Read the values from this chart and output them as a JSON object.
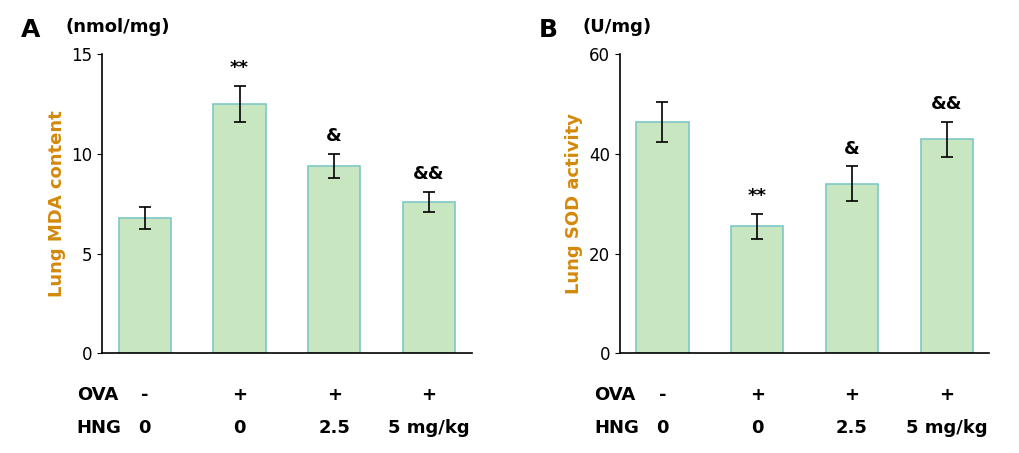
{
  "panel_A": {
    "title": "A",
    "unit_label": "(nmol/mg)",
    "ylabel": "Lung MDA content",
    "values": [
      6.8,
      12.5,
      9.4,
      7.6
    ],
    "errors": [
      0.55,
      0.9,
      0.6,
      0.5
    ],
    "ylim": [
      0,
      15
    ],
    "yticks": [
      0,
      5,
      10,
      15
    ],
    "annotations": [
      "",
      "**",
      "&",
      "&&"
    ],
    "ova_labels": [
      "-",
      "+",
      "+",
      "+"
    ],
    "hng_labels": [
      "0",
      "0",
      "2.5",
      "5 mg/kg"
    ]
  },
  "panel_B": {
    "title": "B",
    "unit_label": "(U/mg)",
    "ylabel": "Lung SOD activity",
    "values": [
      46.5,
      25.5,
      34.0,
      43.0
    ],
    "errors": [
      4.0,
      2.5,
      3.5,
      3.5
    ],
    "ylim": [
      0,
      60
    ],
    "yticks": [
      0,
      20,
      40,
      60
    ],
    "annotations": [
      "",
      "**",
      "&",
      "&&"
    ],
    "ova_labels": [
      "-",
      "+",
      "+",
      "+"
    ],
    "hng_labels": [
      "0",
      "0",
      "2.5",
      "5 mg/kg"
    ]
  },
  "bar_color": "#c8e6c0",
  "bar_edgecolor": "#7ec8c8",
  "bar_width": 0.55,
  "background_color": "#ffffff",
  "ylabel_color": "#d4890a",
  "label_fontsize": 13,
  "tick_fontsize": 12,
  "annot_fontsize": 13,
  "title_fontsize": 18,
  "unit_fontsize": 13
}
